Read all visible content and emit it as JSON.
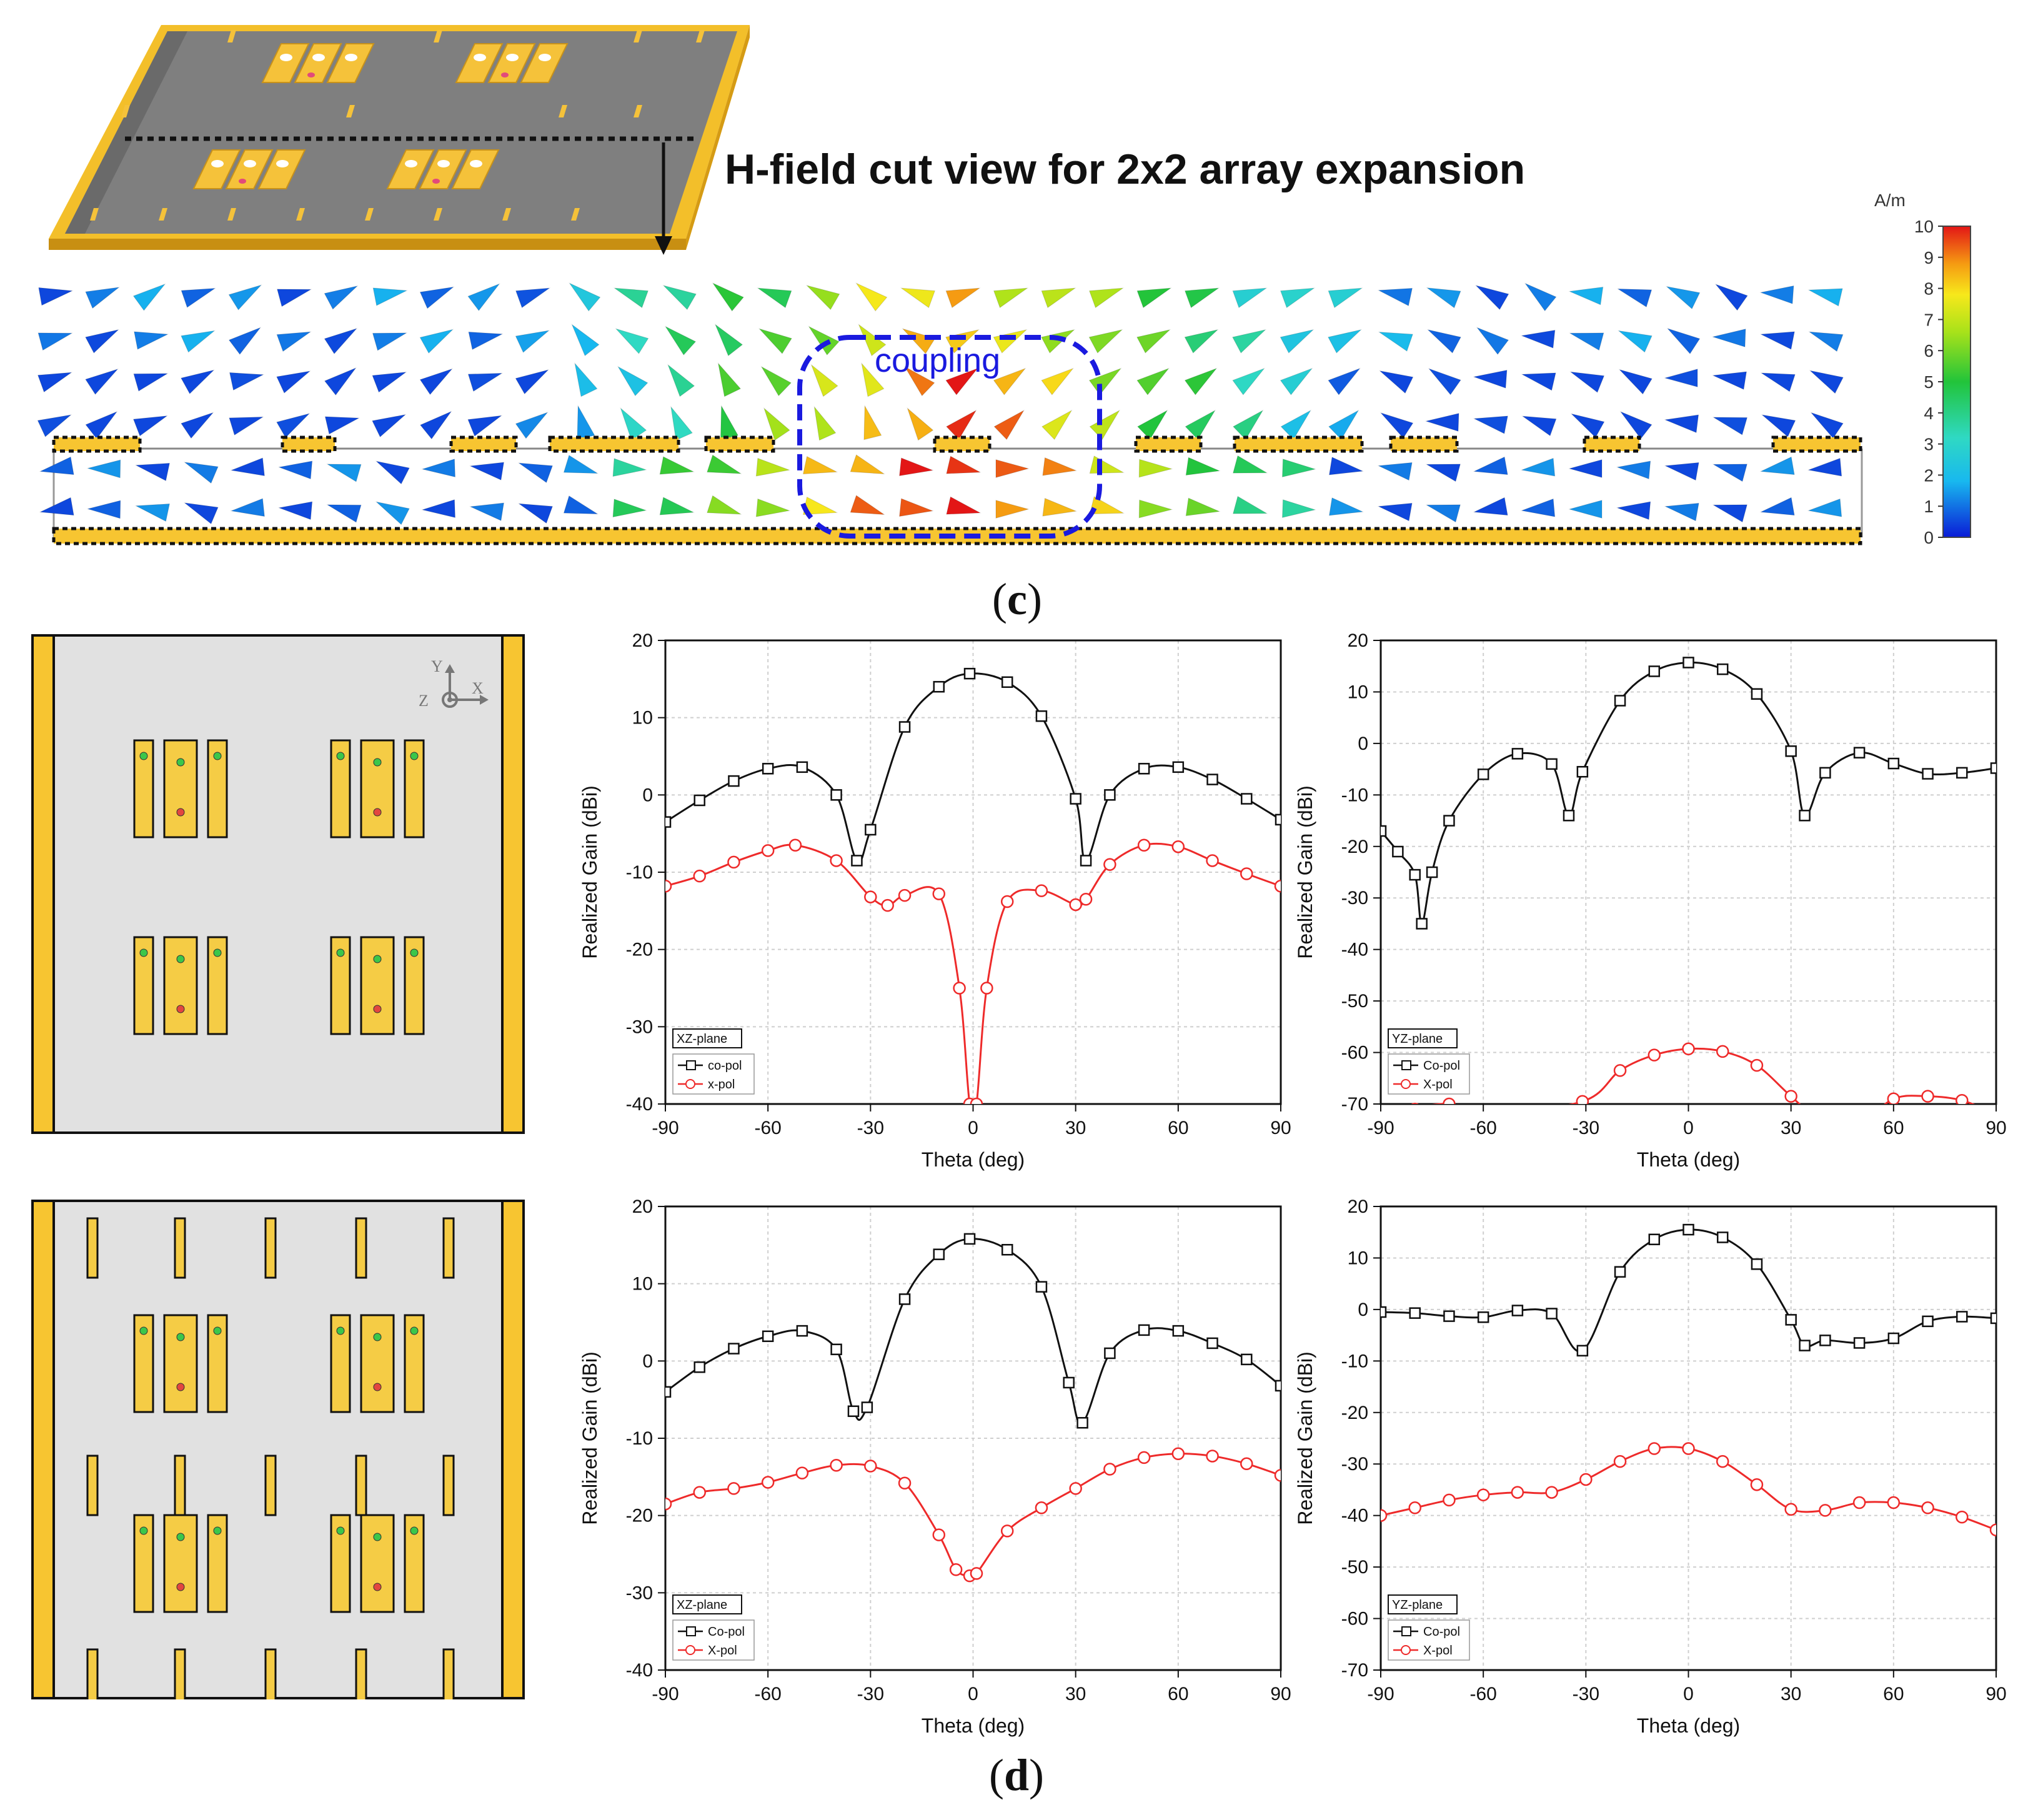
{
  "heading": "H-field cut view for 2x2 array expansion",
  "coupling_label": "coupling",
  "colorbar": {
    "unit": "A/m",
    "ticks": [
      "10",
      "9",
      "8",
      "7",
      "6",
      "5",
      "4",
      "3",
      "2",
      "1",
      "0"
    ]
  },
  "panel_labels": {
    "c": "c",
    "d": "d"
  },
  "axes_labels": {
    "y": "Y",
    "x": "X",
    "z": "Z"
  },
  "colors": {
    "copper": "#f7c531",
    "substrate": "#e1e1e1",
    "co_pol": "#111111",
    "x_pol": "#ee2a2a",
    "coupling": "#1a1adf"
  },
  "chart_data": [
    {
      "type": "line",
      "plane_label": "XZ-plane",
      "xlabel": "Theta (deg)",
      "ylabel": "Realized Gain (dBi)",
      "xlim": [
        -90,
        90
      ],
      "ylim": [
        -40,
        20
      ],
      "xticks": [
        -90,
        -60,
        -30,
        0,
        30,
        60,
        90
      ],
      "yticks": [
        20,
        10,
        0,
        -10,
        -20,
        -30,
        -40
      ],
      "grid": true,
      "legend_position": "bottom-left",
      "series": [
        {
          "name": "co-pol",
          "x": [
            -90,
            -80,
            -70,
            -60,
            -50,
            -40,
            -34,
            -30,
            -20,
            -10,
            -1,
            10,
            20,
            30,
            33,
            40,
            50,
            60,
            70,
            80,
            90
          ],
          "y": [
            -3.5,
            -0.7,
            1.8,
            3.4,
            3.6,
            0,
            -8.5,
            -4.5,
            8.8,
            14,
            15.7,
            14.6,
            10.2,
            -0.5,
            -8.5,
            0,
            3.4,
            3.6,
            2,
            -0.5,
            -3.2
          ]
        },
        {
          "name": "x-pol",
          "x": [
            -90,
            -80,
            -70,
            -60,
            -52,
            -40,
            -30,
            -25,
            -20,
            -10,
            -4,
            -1,
            1,
            4,
            10,
            20,
            30,
            33,
            40,
            50,
            60,
            70,
            80,
            90
          ],
          "y": [
            -11.8,
            -10.5,
            -8.7,
            -7.2,
            -6.5,
            -8.5,
            -13.2,
            -14.3,
            -13,
            -12.8,
            -25,
            -40,
            -40,
            -25,
            -13.8,
            -12.4,
            -14.2,
            -13.5,
            -9,
            -6.5,
            -6.7,
            -8.5,
            -10.2,
            -11.8
          ]
        }
      ]
    },
    {
      "type": "line",
      "plane_label": "YZ-plane",
      "xlabel": "Theta (deg)",
      "ylabel": "Realized Gain (dBi)",
      "xlim": [
        -90,
        90
      ],
      "ylim": [
        -70,
        20
      ],
      "xticks": [
        -90,
        -60,
        -30,
        0,
        30,
        60,
        90
      ],
      "yticks": [
        20,
        10,
        0,
        -10,
        -20,
        -30,
        -40,
        -50,
        -60,
        -70
      ],
      "grid": true,
      "legend_position": "bottom-left",
      "series": [
        {
          "name": "Co-pol",
          "x": [
            -90,
            -85,
            -80,
            -78,
            -75,
            -70,
            -60,
            -50,
            -40,
            -35,
            -31,
            -20,
            -10,
            0,
            10,
            20,
            30,
            34,
            40,
            50,
            60,
            70,
            80,
            90
          ],
          "y": [
            -17,
            -21,
            -25.5,
            -35,
            -25,
            -15,
            -6,
            -2,
            -4,
            -14,
            -5.5,
            8.3,
            14,
            15.7,
            14.4,
            9.6,
            -1.5,
            -14,
            -5.7,
            -1.8,
            -3.9,
            -5.9,
            -5.7,
            -4.8
          ]
        },
        {
          "name": "X-pol",
          "x": [
            -90,
            -80,
            -70,
            -60,
            -31,
            -20,
            -10,
            0,
            10,
            20,
            30,
            40,
            50,
            60,
            70,
            80,
            90
          ],
          "y": [
            -74,
            -71,
            -70,
            -72,
            -69.5,
            -63.5,
            -60.5,
            -59.3,
            -59.8,
            -62.5,
            -68.5,
            -74,
            -74,
            -69,
            -68.5,
            -69.3,
            -72
          ]
        }
      ]
    },
    {
      "type": "line",
      "plane_label": "XZ-plane",
      "xlabel": "Theta (deg)",
      "ylabel": "Realized Gain (dBi)",
      "xlim": [
        -90,
        90
      ],
      "ylim": [
        -40,
        20
      ],
      "xticks": [
        -90,
        -60,
        -30,
        0,
        30,
        60,
        90
      ],
      "yticks": [
        20,
        10,
        0,
        -10,
        -20,
        -30,
        -40
      ],
      "grid": true,
      "legend_position": "bottom-left",
      "series": [
        {
          "name": "Co-pol",
          "x": [
            -90,
            -80,
            -70,
            -60,
            -50,
            -40,
            -35,
            -31,
            -20,
            -10,
            -1,
            10,
            20,
            28,
            32,
            40,
            50,
            60,
            70,
            80,
            90
          ],
          "y": [
            -4,
            -0.8,
            1.6,
            3.2,
            3.9,
            1.5,
            -6.5,
            -6,
            8,
            13.8,
            15.8,
            14.4,
            9.6,
            -2.8,
            -8,
            1,
            4,
            3.9,
            2.3,
            0.2,
            -3.2
          ]
        },
        {
          "name": "X-pol",
          "x": [
            -90,
            -80,
            -70,
            -60,
            -50,
            -40,
            -30,
            -20,
            -10,
            -5,
            -1,
            1,
            10,
            20,
            30,
            40,
            50,
            60,
            70,
            80,
            90
          ],
          "y": [
            -18.5,
            -17,
            -16.5,
            -15.7,
            -14.5,
            -13.5,
            -13.6,
            -15.8,
            -22.5,
            -27,
            -27.8,
            -27.5,
            -22,
            -19,
            -16.5,
            -14,
            -12.5,
            -12,
            -12.3,
            -13.3,
            -14.8
          ]
        }
      ]
    },
    {
      "type": "line",
      "plane_label": "YZ-plane",
      "xlabel": "Theta (deg)",
      "ylabel": "Realized Gain (dBi)",
      "xlim": [
        -90,
        90
      ],
      "ylim": [
        -70,
        20
      ],
      "xticks": [
        -90,
        -60,
        -30,
        0,
        30,
        60,
        90
      ],
      "yticks": [
        20,
        10,
        0,
        -10,
        -20,
        -30,
        -40,
        -50,
        -60,
        -70
      ],
      "grid": true,
      "legend_position": "bottom-left",
      "series": [
        {
          "name": "Co-pol",
          "x": [
            -90,
            -80,
            -70,
            -60,
            -50,
            -40,
            -31,
            -20,
            -10,
            0,
            10,
            20,
            30,
            34,
            40,
            50,
            60,
            70,
            80,
            90
          ],
          "y": [
            -0.5,
            -0.7,
            -1.3,
            -1.5,
            -0.2,
            -0.8,
            -8,
            7.3,
            13.6,
            15.5,
            14,
            8.8,
            -2,
            -7,
            -6,
            -6.5,
            -5.6,
            -2.3,
            -1.4,
            -1.7
          ]
        },
        {
          "name": "X-pol",
          "x": [
            -90,
            -80,
            -70,
            -60,
            -50,
            -40,
            -30,
            -20,
            -10,
            0,
            10,
            20,
            30,
            40,
            50,
            60,
            70,
            80,
            90
          ],
          "y": [
            -40,
            -38.5,
            -37,
            -36,
            -35.5,
            -35.5,
            -33,
            -29.5,
            -27,
            -27,
            -29.5,
            -34,
            -38.8,
            -39,
            -37.5,
            -37.5,
            -38.5,
            -40.3,
            -42.8
          ]
        }
      ]
    }
  ]
}
